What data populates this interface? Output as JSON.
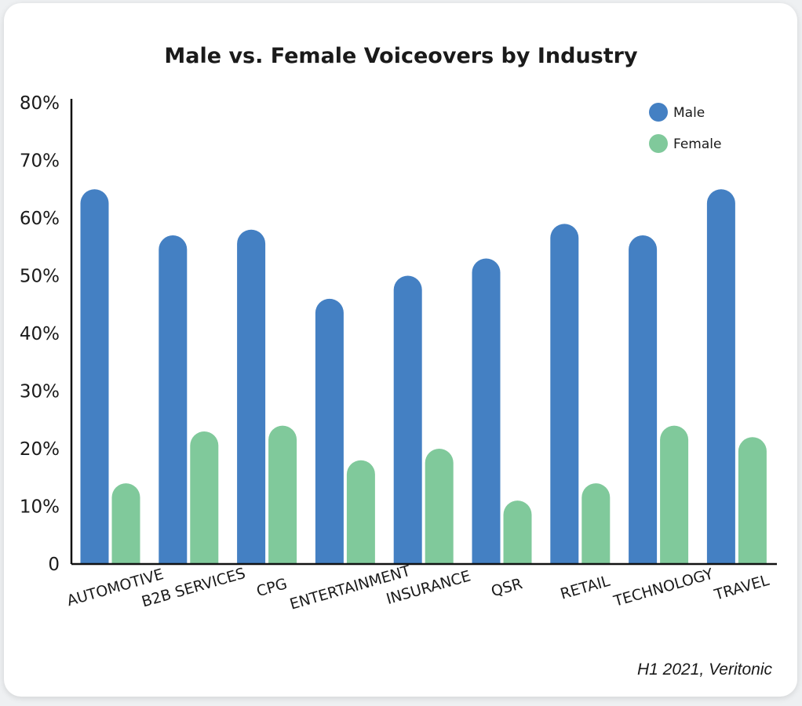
{
  "source": "H1 2021, Veritonic",
  "colors": {
    "male": "#4480c3",
    "female": "#80c99b",
    "axis": "#111111"
  },
  "chart_data": {
    "type": "bar",
    "title": "Male vs. Female Voiceovers by Industry",
    "xlabel": "",
    "ylabel": "",
    "ylim": [
      0,
      80
    ],
    "yticks": [
      {
        "value": 0,
        "label": "0"
      },
      {
        "value": 10,
        "label": "10%"
      },
      {
        "value": 20,
        "label": "20%"
      },
      {
        "value": 30,
        "label": "30%"
      },
      {
        "value": 40,
        "label": "40%"
      },
      {
        "value": 50,
        "label": "50%"
      },
      {
        "value": 60,
        "label": "60%"
      },
      {
        "value": 70,
        "label": "70%"
      },
      {
        "value": 80,
        "label": "80%"
      }
    ],
    "categories": [
      "AUTOMOTIVE",
      "B2B SERVICES",
      "CPG",
      "ENTERTAINMENT",
      "INSURANCE",
      "QSR",
      "RETAIL",
      "TECHNOLOGY",
      "TRAVEL"
    ],
    "series": [
      {
        "name": "Male",
        "values": [
          65,
          57,
          58,
          46,
          50,
          53,
          59,
          57,
          65
        ]
      },
      {
        "name": "Female",
        "values": [
          14,
          23,
          24,
          18,
          20,
          11,
          14,
          24,
          22
        ]
      }
    ],
    "legend": "top-right",
    "grid": false
  }
}
